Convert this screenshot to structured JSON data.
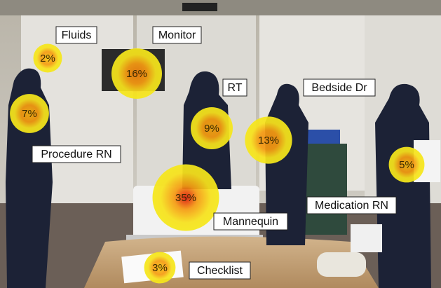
{
  "hotspots": [
    {
      "label": "Fluids",
      "value": 2,
      "value_label": "2%"
    },
    {
      "label": "Monitor",
      "value": 16,
      "value_label": "16%"
    },
    {
      "label": "RT",
      "value": 9,
      "value_label": "9%"
    },
    {
      "label": "Bedside Dr",
      "value": 13,
      "value_label": "13%"
    },
    {
      "label": "Procedure RN",
      "value": 7,
      "value_label": "7%"
    },
    {
      "label": "Medication RN",
      "value": 5,
      "value_label": "5%"
    },
    {
      "label": "Mannequin",
      "value": 35,
      "value_label": "35%"
    },
    {
      "label": "Checklist",
      "value": 3,
      "value_label": "3%"
    }
  ]
}
